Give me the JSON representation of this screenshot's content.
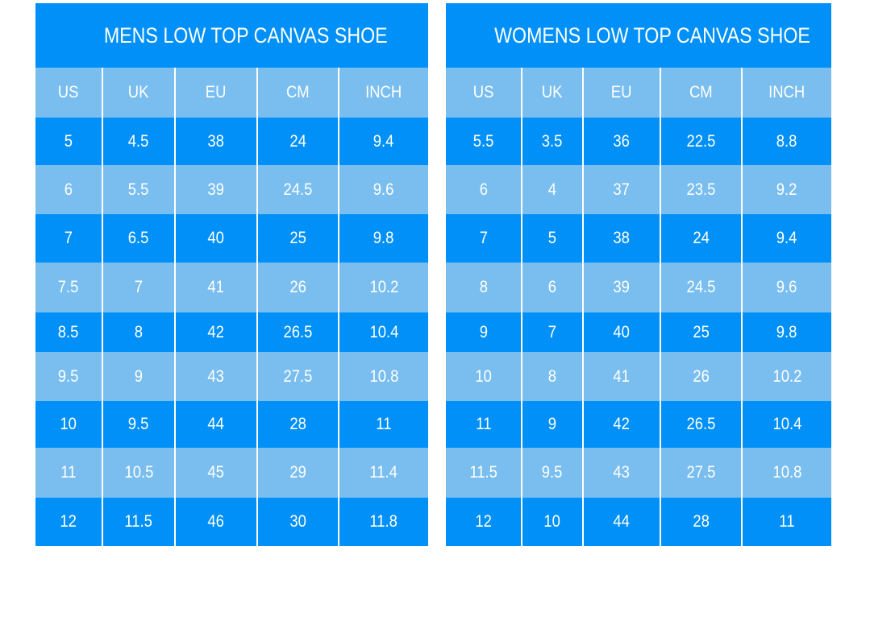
{
  "colors": {
    "dark": "#0090f8",
    "light": "#7abef0"
  },
  "tables": [
    {
      "title": "MENS LOW TOP CANVAS SHOE",
      "headers": [
        "US",
        "UK",
        "EU",
        "CM",
        "INCH"
      ],
      "rows": [
        [
          "5",
          "4.5",
          "38",
          "24",
          "9.4"
        ],
        [
          "6",
          "5.5",
          "39",
          "24.5",
          "9.6"
        ],
        [
          "7",
          "6.5",
          "40",
          "25",
          "9.8"
        ],
        [
          "7.5",
          "7",
          "41",
          "26",
          "10.2"
        ],
        [
          "8.5",
          "8",
          "42",
          "26.5",
          "10.4"
        ],
        [
          "9.5",
          "9",
          "43",
          "27.5",
          "10.8"
        ],
        [
          "10",
          "9.5",
          "44",
          "28",
          "11"
        ],
        [
          "11",
          "10.5",
          "45",
          "29",
          "11.4"
        ],
        [
          "12",
          "11.5",
          "46",
          "30",
          "11.8"
        ]
      ]
    },
    {
      "title": "WOMENS LOW TOP CANVAS SHOE",
      "headers": [
        "US",
        "UK",
        "EU",
        "CM",
        "INCH"
      ],
      "rows": [
        [
          "5.5",
          "3.5",
          "36",
          "22.5",
          "8.8"
        ],
        [
          "6",
          "4",
          "37",
          "23.5",
          "9.2"
        ],
        [
          "7",
          "5",
          "38",
          "24",
          "9.4"
        ],
        [
          "8",
          "6",
          "39",
          "24.5",
          "9.6"
        ],
        [
          "9",
          "7",
          "40",
          "25",
          "9.8"
        ],
        [
          "10",
          "8",
          "41",
          "26",
          "10.2"
        ],
        [
          "11",
          "9",
          "42",
          "26.5",
          "10.4"
        ],
        [
          "11.5",
          "9.5",
          "43",
          "27.5",
          "10.8"
        ],
        [
          "12",
          "10",
          "44",
          "28",
          "11"
        ]
      ]
    }
  ]
}
